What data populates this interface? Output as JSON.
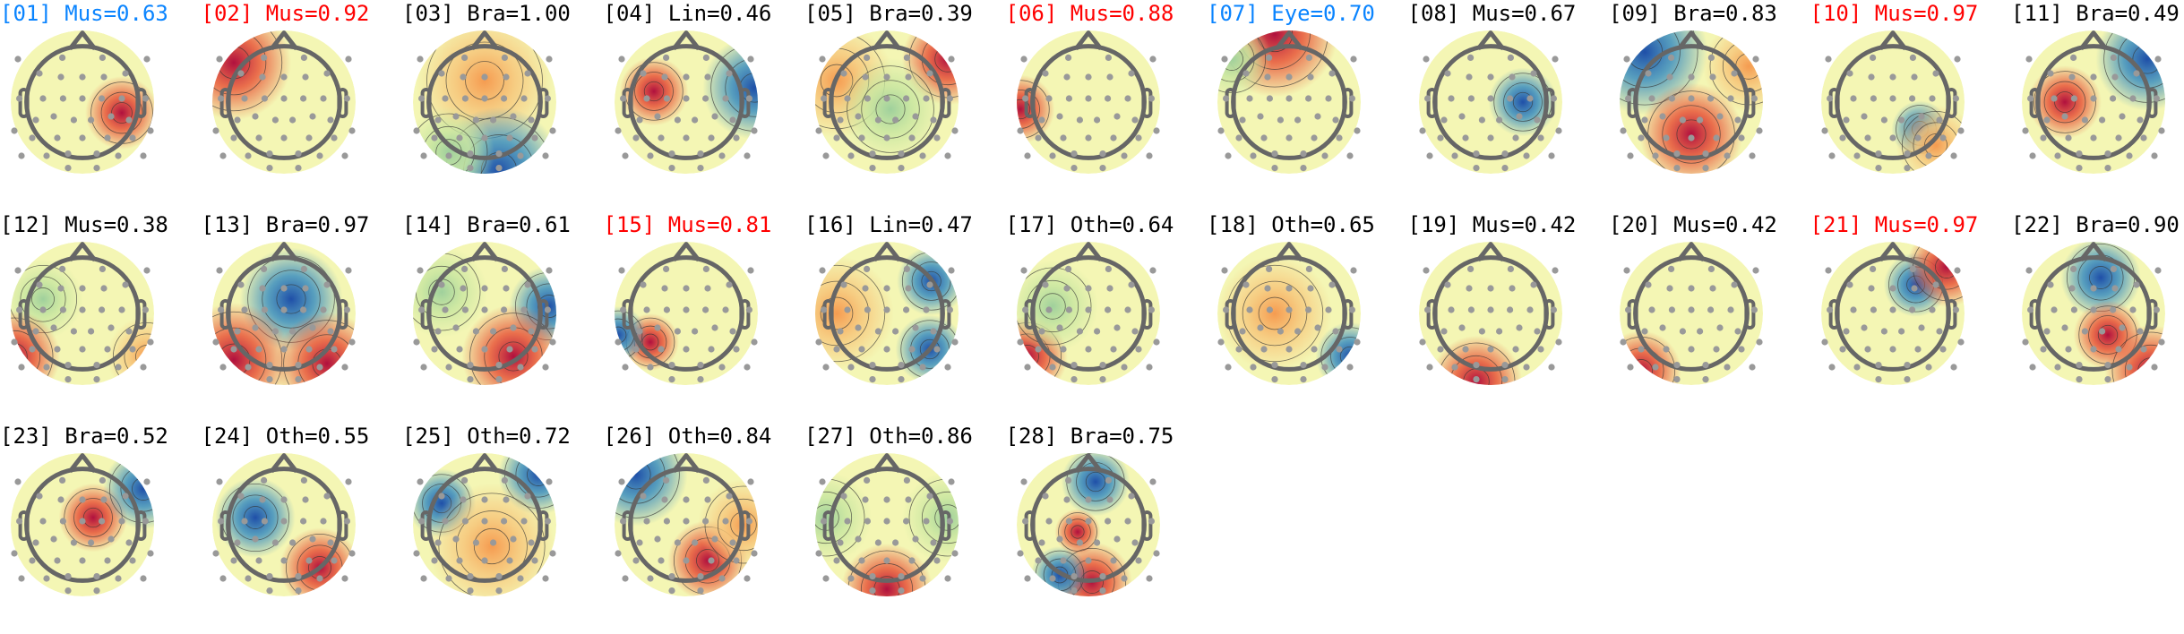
{
  "components": [
    {
      "title": "[01] Mus=0.63",
      "color": "#0a84ff"
    },
    {
      "title": "[02] Mus=0.92",
      "color": "#ff0000"
    },
    {
      "title": "[03] Bra=1.00",
      "color": "#000000"
    },
    {
      "title": "[04] Lin=0.46",
      "color": "#000000"
    },
    {
      "title": "[05] Bra=0.39",
      "color": "#000000"
    },
    {
      "title": "[06] Mus=0.88",
      "color": "#ff0000"
    },
    {
      "title": "[07] Eye=0.70",
      "color": "#0a84ff"
    },
    {
      "title": "[08] Mus=0.67",
      "color": "#000000"
    },
    {
      "title": "[09] Bra=0.83",
      "color": "#000000"
    },
    {
      "title": "[10] Mus=0.97",
      "color": "#ff0000"
    },
    {
      "title": "[11] Bra=0.49",
      "color": "#000000"
    },
    {
      "title": "[12] Mus=0.38",
      "color": "#000000"
    },
    {
      "title": "[13] Bra=0.97",
      "color": "#000000"
    },
    {
      "title": "[14] Bra=0.61",
      "color": "#000000"
    },
    {
      "title": "[15] Mus=0.81",
      "color": "#ff0000"
    },
    {
      "title": "[16] Lin=0.47",
      "color": "#000000"
    },
    {
      "title": "[17] Oth=0.64",
      "color": "#000000"
    },
    {
      "title": "[18] Oth=0.65",
      "color": "#000000"
    },
    {
      "title": "[19] Mus=0.42",
      "color": "#000000"
    },
    {
      "title": "[20] Mus=0.42",
      "color": "#000000"
    },
    {
      "title": "[21] Mus=0.97",
      "color": "#ff0000"
    },
    {
      "title": "[22] Bra=0.90",
      "color": "#000000"
    },
    {
      "title": "[23] Bra=0.52",
      "color": "#000000"
    },
    {
      "title": "[24] Oth=0.55",
      "color": "#000000"
    },
    {
      "title": "[25] Oth=0.72",
      "color": "#000000"
    },
    {
      "title": "[26] Oth=0.84",
      "color": "#000000"
    },
    {
      "title": "[27] Oth=0.86",
      "color": "#000000"
    },
    {
      "title": "[28] Bra=0.75",
      "color": "#000000"
    }
  ]
}
